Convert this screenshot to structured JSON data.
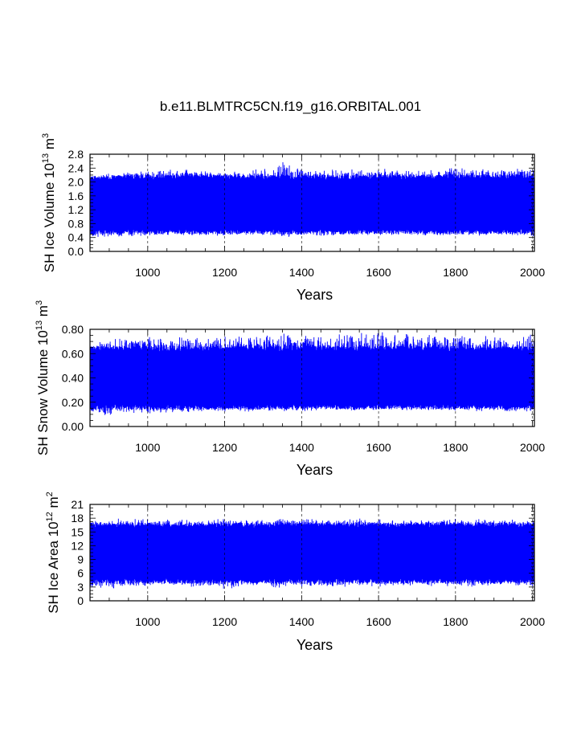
{
  "figure_title": "b.e11.BLMTRC5CN.f19_g16.ORBITAL.001",
  "line_color": "#0000ff",
  "chart_data": [
    {
      "type": "line",
      "xlabel": "Years",
      "ylabel": "SH Ice Volume 10^13 m^3",
      "ylabel_base": "SH Ice Volume 10",
      "ylabel_exp": "13",
      "ylabel_unit": "m",
      "ylabel_unit_exp": "3",
      "xlim": [
        850,
        2005
      ],
      "ylim": [
        0.0,
        2.8
      ],
      "xticks": [
        1000,
        1200,
        1400,
        1600,
        1800,
        2000
      ],
      "yticks": [
        "0.0",
        "0.4",
        "0.8",
        "1.2",
        "1.6",
        "2.0",
        "2.4",
        "2.8"
      ],
      "vgrid": true,
      "series": [
        {
          "x_range": [
            850,
            2005
          ],
          "band_upper": [
            2.15,
            2.25,
            2.3,
            2.35,
            2.4,
            2.4,
            2.35,
            2.3,
            2.35,
            2.4,
            2.6,
            2.4,
            2.35,
            2.4,
            2.45,
            2.4,
            2.35,
            2.35,
            2.4,
            2.45,
            2.45,
            2.4,
            2.45,
            2.45
          ],
          "band_lower": [
            0.35,
            0.35,
            0.4,
            0.45,
            0.45,
            0.45,
            0.45,
            0.45,
            0.45,
            0.45,
            0.4,
            0.45,
            0.45,
            0.45,
            0.45,
            0.45,
            0.45,
            0.45,
            0.45,
            0.45,
            0.45,
            0.45,
            0.45,
            0.4
          ],
          "typical_max": 2.2,
          "typical_min": 0.5
        }
      ]
    },
    {
      "type": "line",
      "xlabel": "Years",
      "ylabel": "SH Snow Volume 10^13 m^3",
      "ylabel_base": "SH Snow Volume 10",
      "ylabel_exp": "13",
      "ylabel_unit": "m",
      "ylabel_unit_exp": "3",
      "xlim": [
        850,
        2005
      ],
      "ylim": [
        0.0,
        0.8
      ],
      "xticks": [
        1000,
        1200,
        1400,
        1600,
        1800,
        2000
      ],
      "yticks": [
        "0.00",
        "0.20",
        "0.40",
        "0.60",
        "0.80"
      ],
      "vgrid": true,
      "series": [
        {
          "x_range": [
            850,
            2005
          ],
          "band_upper": [
            0.68,
            0.72,
            0.74,
            0.74,
            0.74,
            0.75,
            0.75,
            0.75,
            0.75,
            0.76,
            0.79,
            0.77,
            0.76,
            0.77,
            0.78,
            0.79,
            0.77,
            0.77,
            0.77,
            0.77,
            0.76,
            0.76,
            0.75,
            0.76
          ],
          "band_lower": [
            0.1,
            0.09,
            0.1,
            0.1,
            0.11,
            0.11,
            0.11,
            0.12,
            0.12,
            0.12,
            0.12,
            0.12,
            0.13,
            0.13,
            0.13,
            0.13,
            0.13,
            0.13,
            0.13,
            0.13,
            0.12,
            0.12,
            0.12,
            0.11
          ],
          "typical_max": 0.66,
          "typical_min": 0.14
        }
      ]
    },
    {
      "type": "line",
      "xlabel": "Years",
      "ylabel": "SH Ice Area 10^12 m^2",
      "ylabel_base": "SH Ice Area 10",
      "ylabel_exp": "12",
      "ylabel_unit": "m",
      "ylabel_unit_exp": "2",
      "xlim": [
        850,
        2005
      ],
      "ylim": [
        0,
        21
      ],
      "xticks": [
        1000,
        1200,
        1400,
        1600,
        1800,
        2000
      ],
      "yticks": [
        "0",
        "3",
        "6",
        "9",
        "12",
        "15",
        "18",
        "21"
      ],
      "vgrid": true,
      "series": [
        {
          "x_range": [
            850,
            2005
          ],
          "band_upper": [
            17.5,
            18.0,
            18.0,
            18.0,
            17.8,
            17.8,
            17.8,
            18.0,
            17.8,
            17.8,
            18.2,
            18.0,
            17.8,
            18.0,
            18.2,
            18.0,
            17.8,
            17.8,
            18.0,
            18.0,
            18.0,
            18.0,
            18.0,
            17.8
          ],
          "band_lower": [
            2.5,
            2.5,
            3.0,
            3.0,
            3.0,
            3.0,
            2.8,
            2.5,
            3.0,
            3.0,
            2.5,
            3.0,
            3.0,
            3.0,
            3.0,
            3.0,
            3.0,
            3.0,
            3.0,
            3.0,
            3.0,
            3.0,
            3.0,
            2.8
          ],
          "typical_max": 17.0,
          "typical_min": 3.8
        }
      ]
    }
  ]
}
